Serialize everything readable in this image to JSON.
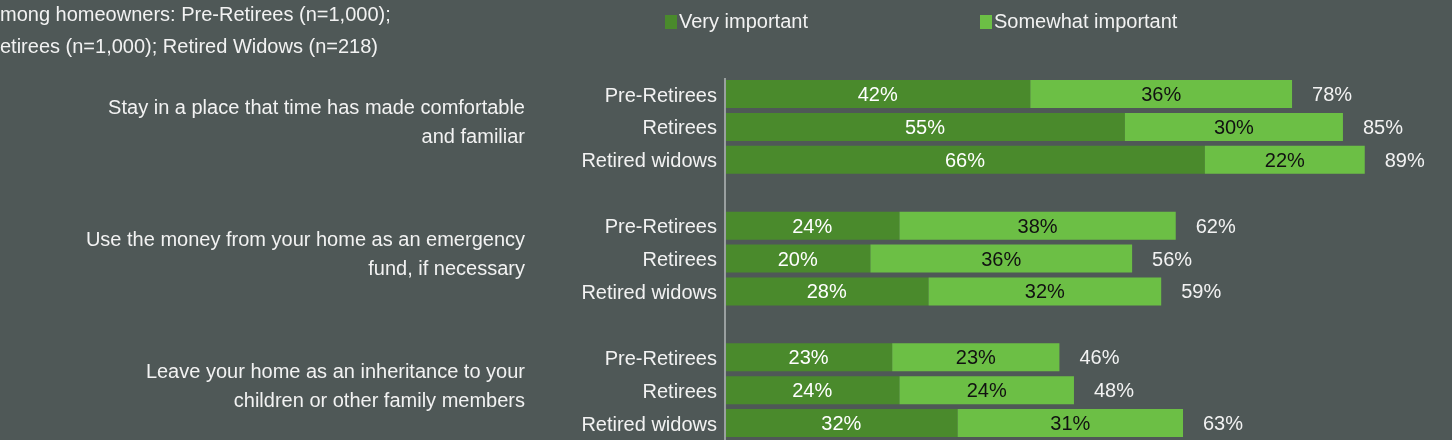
{
  "chart_data": {
    "type": "bar",
    "orientation": "horizontal",
    "stacked": true,
    "subtitle": "mong homeowners: Pre-Retirees (n=1,000);\netirees (n=1,000); Retired Widows (n=218)",
    "categories": [
      "Pre-Retirees",
      "Retirees",
      "Retired widows",
      null,
      "Pre-Retirees",
      "Retirees",
      "Retired widows",
      null,
      "Pre-Retirees",
      "Retirees",
      "Retired widows"
    ],
    "series": [
      {
        "name": "Very important",
        "color": "#4a8a2c",
        "values": [
          42,
          55,
          66,
          null,
          24,
          20,
          28,
          null,
          23,
          24,
          32
        ],
        "value_labels": [
          "42%",
          "55%",
          "66%",
          null,
          "24%",
          "20%",
          "28%",
          null,
          "23%",
          "24%",
          "32%"
        ]
      },
      {
        "name": "Somewhat important",
        "color": "#6cbf45",
        "values": [
          36,
          30,
          22,
          null,
          38,
          36,
          32,
          null,
          23,
          24,
          31
        ],
        "value_labels": [
          "36%",
          "30%",
          "22%",
          null,
          "38%",
          "36%",
          "32%",
          null,
          "23%",
          "24%",
          "31%"
        ]
      }
    ],
    "totals": [
      "78%",
      "85%",
      "89%",
      null,
      "62%",
      "56%",
      "59%",
      null,
      "46%",
      "48%",
      "63%"
    ],
    "annotations": [
      "Stay in a place that time has made comfortable\nand familiar",
      "Use the money from your home as an emergency\nfund, if necessary",
      "Leave your home as an inheritance to your\nchildren or other family members"
    ],
    "xlim": [
      0,
      100
    ],
    "tick_labels": "y",
    "legend": "top"
  }
}
